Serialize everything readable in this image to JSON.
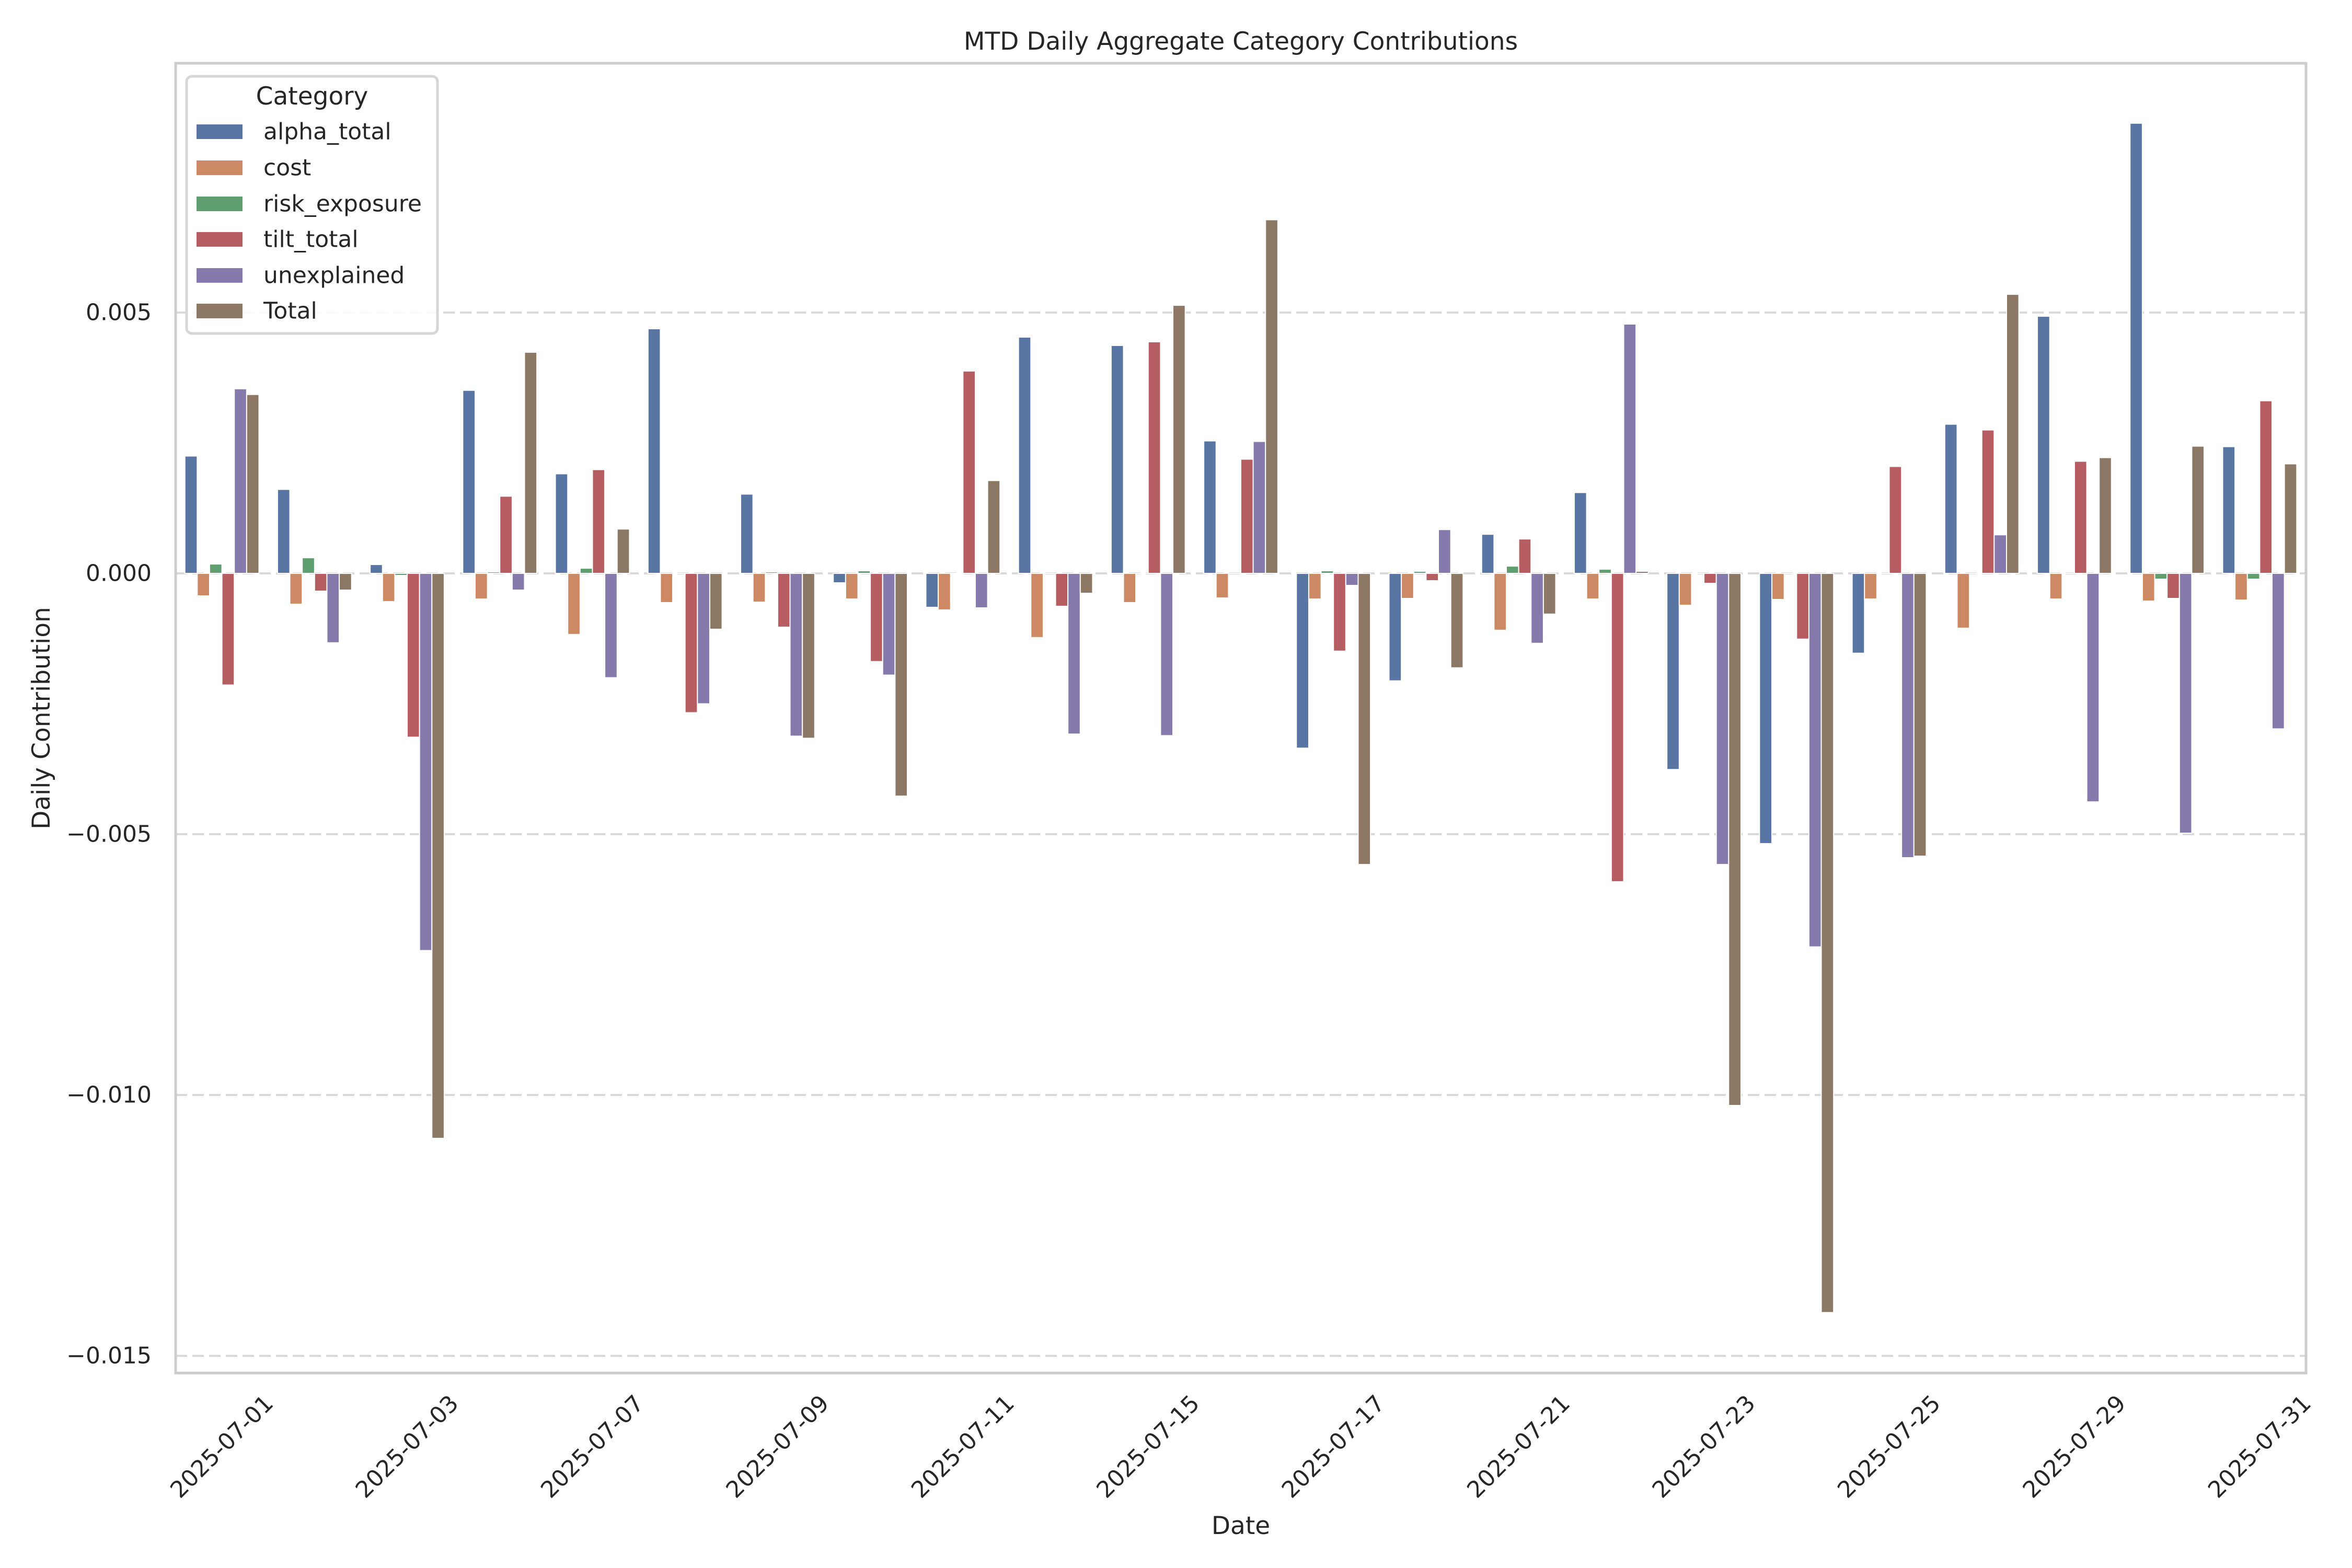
{
  "chart_data": {
    "type": "bar",
    "title": "MTD Daily Aggregate Category Contributions",
    "xlabel": "Date",
    "ylabel": "Daily Contribution",
    "ylim": [
      -0.01533,
      0.00978
    ],
    "yticks": [
      0.005,
      0.0,
      -0.005,
      -0.01,
      -0.015
    ],
    "ytick_labels": [
      "0.005",
      "0.000",
      "−0.005",
      "−0.010",
      "−0.015"
    ],
    "grid": "horizontal dashed",
    "legend": {
      "title": "Category",
      "placement": "top-left"
    },
    "categories": [
      "2025-07-01",
      null,
      "2025-07-03",
      null,
      "2025-07-07",
      null,
      "2025-07-09",
      null,
      "2025-07-11",
      null,
      "2025-07-15",
      null,
      "2025-07-17",
      null,
      "2025-07-21",
      null,
      "2025-07-23",
      null,
      "2025-07-25",
      null,
      "2025-07-29",
      null,
      "2025-07-31"
    ],
    "series": [
      {
        "name": "alpha_total",
        "color": "#5975a4",
        "values": [
          0.00225,
          0.00161,
          0.00017,
          0.00351,
          0.00191,
          0.00469,
          0.00152,
          -0.00018,
          -0.00065,
          0.00453,
          0.00437,
          0.00254,
          -0.00335,
          -0.00206,
          0.00075,
          0.00155,
          -0.00376,
          -0.00518,
          -0.00153,
          0.00286,
          0.00493,
          0.00863,
          0.00243
        ]
      },
      {
        "name": "cost",
        "color": "#cc8963",
        "values": [
          -0.00043,
          -0.00059,
          -0.00054,
          -0.00049,
          -0.00117,
          -0.00056,
          -0.00055,
          -0.00049,
          -0.0007,
          -0.00123,
          -0.00056,
          -0.00047,
          -0.00049,
          -0.00048,
          -0.00109,
          -0.00049,
          -0.00061,
          -0.0005,
          -0.00049,
          -0.00105,
          -0.00049,
          -0.00053,
          -0.00051
        ]
      },
      {
        "name": "risk_exposure",
        "color": "#5f9e6e",
        "values": [
          0.00018,
          0.0003,
          -4e-05,
          3e-05,
          0.0001,
          0.0,
          3e-05,
          5e-05,
          -2e-05,
          0.0,
          0.0,
          0.0,
          5e-05,
          4e-05,
          0.00014,
          8e-05,
          0.0,
          0.0,
          0.0,
          0.0,
          0.0,
          -0.00011,
          -0.00011
        ]
      },
      {
        "name": "tilt_total",
        "color": "#b55d60",
        "values": [
          -0.00214,
          -0.00034,
          -0.00314,
          0.00148,
          0.00199,
          -0.00267,
          -0.00103,
          -0.00169,
          0.00388,
          -0.00063,
          0.00444,
          0.00219,
          -0.00149,
          -0.00014,
          0.00066,
          -0.00591,
          -0.00019,
          -0.00126,
          0.00205,
          0.00275,
          0.00215,
          -0.00048,
          0.00331
        ]
      },
      {
        "name": "unexplained",
        "color": "#857aab",
        "values": [
          0.00354,
          -0.00133,
          -0.00723,
          -0.00032,
          -0.002,
          -0.0025,
          -0.00312,
          -0.00195,
          -0.00066,
          -0.00308,
          -0.00311,
          0.00253,
          -0.00023,
          0.00084,
          -0.00134,
          0.00478,
          -0.00558,
          -0.00716,
          -0.00545,
          0.00074,
          -0.00438,
          -0.00498,
          -0.00298
        ]
      },
      {
        "name": "Total",
        "color": "#8d7866",
        "values": [
          0.00343,
          -0.00032,
          -0.01083,
          0.00424,
          0.00085,
          -0.00107,
          -0.00316,
          -0.00427,
          0.00178,
          -0.00038,
          0.00514,
          0.00678,
          -0.00558,
          -0.00181,
          -0.00078,
          4e-05,
          -0.0102,
          -0.01417,
          -0.00542,
          0.00535,
          0.00222,
          0.00244,
          0.0021
        ]
      }
    ]
  },
  "colors": {
    "grid": "#d9d9d9",
    "spine": "#cccccc",
    "text": "#262626"
  }
}
